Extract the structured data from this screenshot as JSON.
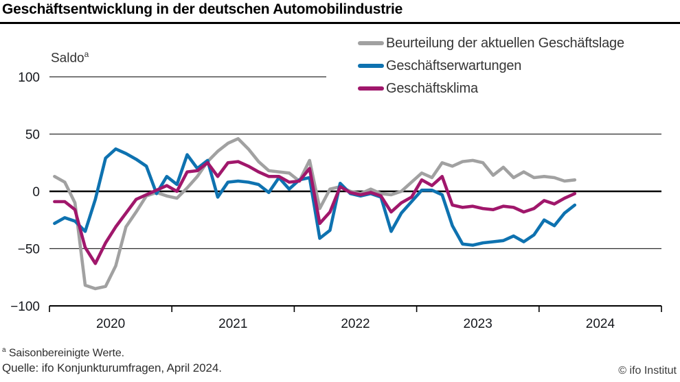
{
  "title": "Geschäftsentwicklung in der deutschen Automobilindustrie",
  "y_axis": {
    "label": "Saldo",
    "label_superscript": "a",
    "tick_labels": [
      "100",
      "50",
      "0",
      "−50",
      "−100"
    ],
    "tick_values": [
      100,
      50,
      0,
      -50,
      -100
    ]
  },
  "x_axis": {
    "year_labels": [
      "2020",
      "2021",
      "2022",
      "2023",
      "2024"
    ]
  },
  "footer": {
    "footnote_marker": "a",
    "footnote_text": " Saisonbereinigte Werte.",
    "source": "Quelle: ifo Konjunkturumfragen, April 2024.",
    "copyright": "© ifo Institut"
  },
  "colors": {
    "lage": "#a1a1a1",
    "erwartungen": "#0e72b0",
    "klima": "#a0176b",
    "axis": "#000000",
    "grid": "#2b2b2b",
    "tick_text": "#16181d"
  },
  "chart_data": {
    "type": "line",
    "title": "Geschäftsentwicklung in der deutschen Automobilindustrie",
    "ylabel": "Saldo (saisonbereinigte Werte)",
    "ylim": [
      -100,
      100
    ],
    "x_monthly_start": "2020-01",
    "x_monthly_end": "2024-04",
    "grid": "horizontal",
    "legend_position": "top-right",
    "series": [
      {
        "name": "Beurteilung der aktuellen Geschäftslage",
        "color": "#a1a1a1",
        "values": [
          13,
          8,
          -10,
          -82,
          -85,
          -83,
          -65,
          -31,
          -18,
          -4,
          -1,
          -4,
          -6,
          3,
          13,
          26,
          35,
          42,
          46,
          37,
          26,
          18,
          17,
          16,
          9,
          27,
          -15,
          2,
          4,
          0,
          -2,
          2,
          -2,
          -3,
          0,
          8,
          16,
          12,
          25,
          22,
          26,
          27,
          25,
          14,
          21,
          12,
          17,
          12,
          13,
          12,
          9,
          10
        ]
      },
      {
        "name": "Geschäftserwartungen",
        "color": "#0e72b0",
        "values": [
          -28,
          -23,
          -26,
          -35,
          -7,
          29,
          37,
          33,
          28,
          22,
          -2,
          13,
          6,
          32,
          20,
          27,
          -5,
          8,
          9,
          8,
          6,
          -1,
          12,
          2,
          10,
          12,
          -41,
          -34,
          7,
          -2,
          -4,
          -2,
          -5,
          -35,
          -19,
          -9,
          1,
          1,
          -3,
          -30,
          -46,
          -47,
          -45,
          -44,
          -43,
          -39,
          -44,
          -38,
          -25,
          -30,
          -19,
          -12
        ]
      },
      {
        "name": "Geschäftsklima",
        "color": "#a0176b",
        "values": [
          -9,
          -9,
          -16,
          -49,
          -63,
          -45,
          -31,
          -19,
          -7,
          -3,
          1,
          5,
          0,
          17,
          18,
          25,
          13,
          25,
          26,
          22,
          17,
          13,
          13,
          8,
          9,
          20,
          -28,
          -18,
          4,
          -1,
          -3,
          -1,
          -4,
          -18,
          -10,
          -5,
          10,
          5,
          13,
          -12,
          -14,
          -13,
          -15,
          -16,
          -13,
          -14,
          -18,
          -15,
          -8,
          -11,
          -6,
          -2
        ]
      }
    ]
  }
}
